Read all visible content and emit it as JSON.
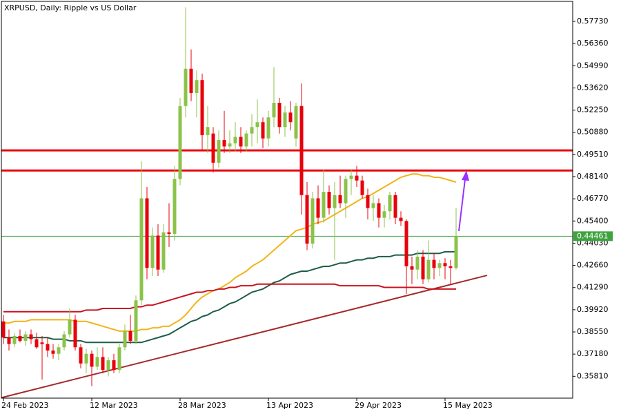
{
  "chart_data": {
    "type": "candlestick",
    "title": "XRPUSD, Daily:  Ripple vs US Dollar",
    "categories": [
      "24 Feb 2023",
      null,
      null,
      null,
      null,
      null,
      null,
      null,
      null,
      null,
      null,
      null,
      null,
      null,
      null,
      null,
      "12 Mar 2023",
      null,
      null,
      null,
      null,
      null,
      null,
      null,
      null,
      null,
      null,
      null,
      null,
      null,
      null,
      null,
      "28 Mar 2023",
      null,
      null,
      null,
      null,
      null,
      null,
      null,
      null,
      null,
      null,
      null,
      null,
      null,
      null,
      null,
      "13 Apr 2023",
      null,
      null,
      null,
      null,
      null,
      null,
      null,
      null,
      null,
      null,
      null,
      null,
      null,
      null,
      null,
      "29 Apr 2023",
      null,
      null,
      null,
      null,
      null,
      null,
      null,
      null,
      null,
      null,
      null,
      null,
      null,
      null,
      null,
      "15 May 2023",
      null,
      null
    ],
    "open": [
      0.392,
      0.382,
      0.378,
      0.383,
      0.38,
      0.384,
      0.381,
      0.379,
      0.378,
      0.374,
      0.372,
      0.376,
      0.384,
      0.393,
      0.376,
      0.366,
      0.372,
      0.364,
      0.37,
      0.362,
      0.368,
      0.362,
      0.376,
      0.386,
      0.38,
      0.405,
      0.468,
      0.425,
      0.445,
      0.424,
      0.447,
      0.446,
      0.48,
      0.525,
      0.548,
      0.533,
      0.541,
      0.507,
      0.508,
      0.49,
      0.504,
      0.5,
      0.502,
      0.506,
      0.5,
      0.508,
      0.512,
      0.515,
      0.505,
      0.518,
      0.527,
      0.512,
      0.521,
      0.505,
      0.525,
      0.47,
      0.44,
      0.468,
      0.456,
      0.472,
      0.462,
      0.47,
      0.465,
      0.48,
      0.482,
      0.479,
      0.47,
      0.462,
      0.465,
      0.456,
      0.46,
      0.47,
      0.456,
      0.454,
      0.426,
      0.424,
      0.432,
      0.418,
      0.43,
      0.425,
      0.428,
      0.426,
      0.425
    ],
    "high": [
      0.396,
      0.387,
      0.385,
      0.387,
      0.386,
      0.387,
      0.385,
      0.383,
      0.382,
      0.378,
      0.378,
      0.386,
      0.4,
      0.396,
      0.378,
      0.375,
      0.374,
      0.376,
      0.376,
      0.37,
      0.372,
      0.378,
      0.39,
      0.396,
      0.408,
      0.491,
      0.475,
      0.45,
      0.452,
      0.452,
      0.465,
      0.488,
      0.53,
      0.586,
      0.56,
      0.547,
      0.545,
      0.525,
      0.512,
      0.51,
      0.522,
      0.51,
      0.515,
      0.512,
      0.51,
      0.52,
      0.529,
      0.518,
      0.522,
      0.549,
      0.53,
      0.525,
      0.528,
      0.527,
      0.539,
      0.478,
      0.472,
      0.476,
      0.486,
      0.476,
      0.478,
      0.482,
      0.482,
      0.486,
      0.488,
      0.482,
      0.474,
      0.47,
      0.468,
      0.464,
      0.472,
      0.472,
      0.46,
      0.455,
      0.432,
      0.436,
      0.436,
      0.442,
      0.434,
      0.43,
      0.431,
      0.43,
      0.462
    ],
    "low": [
      0.378,
      0.374,
      0.376,
      0.379,
      0.377,
      0.378,
      0.375,
      0.356,
      0.37,
      0.369,
      0.368,
      0.374,
      0.382,
      0.374,
      0.363,
      0.36,
      0.352,
      0.362,
      0.36,
      0.358,
      0.36,
      0.36,
      0.374,
      0.378,
      0.378,
      0.402,
      0.418,
      0.42,
      0.42,
      0.422,
      0.438,
      0.442,
      0.476,
      0.518,
      0.528,
      0.518,
      0.498,
      0.496,
      0.484,
      0.487,
      0.496,
      0.496,
      0.497,
      0.496,
      0.497,
      0.5,
      0.502,
      0.499,
      0.5,
      0.512,
      0.508,
      0.506,
      0.51,
      0.5,
      0.458,
      0.436,
      0.437,
      0.452,
      0.453,
      0.458,
      0.43,
      0.462,
      0.456,
      0.47,
      0.475,
      0.468,
      0.455,
      0.454,
      0.45,
      0.45,
      0.455,
      0.452,
      0.451,
      0.409,
      0.415,
      0.418,
      0.415,
      0.416,
      0.418,
      0.42,
      0.418,
      0.415,
      0.424
    ],
    "close": [
      0.382,
      0.378,
      0.383,
      0.38,
      0.384,
      0.381,
      0.376,
      0.378,
      0.374,
      0.372,
      0.376,
      0.384,
      0.393,
      0.376,
      0.366,
      0.372,
      0.364,
      0.37,
      0.362,
      0.368,
      0.362,
      0.376,
      0.386,
      0.38,
      0.405,
      0.468,
      0.425,
      0.445,
      0.424,
      0.447,
      0.446,
      0.48,
      0.525,
      0.548,
      0.533,
      0.541,
      0.507,
      0.512,
      0.49,
      0.504,
      0.5,
      0.502,
      0.506,
      0.5,
      0.508,
      0.512,
      0.515,
      0.505,
      0.518,
      0.527,
      0.512,
      0.521,
      0.515,
      0.525,
      0.47,
      0.44,
      0.468,
      0.456,
      0.472,
      0.462,
      0.47,
      0.465,
      0.48,
      0.482,
      0.479,
      0.47,
      0.462,
      0.465,
      0.456,
      0.46,
      0.47,
      0.456,
      0.454,
      0.426,
      0.424,
      0.432,
      0.418,
      0.43,
      0.425,
      0.428,
      0.426,
      0.425,
      0.4446
    ],
    "up_color": "#8bc34a",
    "down_color": "#e8000b",
    "lines": [
      {
        "color": "#f2b417",
        "values": [
          0.391,
          0.391,
          0.392,
          0.392,
          0.392,
          0.393,
          0.393,
          0.393,
          0.393,
          0.393,
          0.393,
          0.393,
          0.393,
          0.392,
          0.392,
          0.392,
          0.391,
          0.39,
          0.389,
          0.388,
          0.387,
          0.386,
          0.386,
          0.386,
          0.386,
          0.387,
          0.387,
          0.388,
          0.388,
          0.389,
          0.389,
          0.391,
          0.393,
          0.396,
          0.4,
          0.404,
          0.407,
          0.409,
          0.411,
          0.412,
          0.414,
          0.416,
          0.419,
          0.421,
          0.423,
          0.426,
          0.428,
          0.43,
          0.433,
          0.436,
          0.439,
          0.442,
          0.445,
          0.448,
          0.449,
          0.45,
          0.452,
          0.453,
          0.454,
          0.456,
          0.458,
          0.46,
          0.462,
          0.464,
          0.466,
          0.468,
          0.469,
          0.471,
          0.473,
          0.475,
          0.477,
          0.479,
          0.481,
          0.482,
          0.483,
          0.483,
          0.482,
          0.482,
          0.481,
          0.481,
          0.48,
          0.479,
          0.478
        ]
      },
      {
        "color": "#1e5c46",
        "values": [
          0.382,
          0.382,
          0.382,
          0.382,
          0.382,
          0.382,
          0.382,
          0.382,
          0.382,
          0.381,
          0.381,
          0.381,
          0.38,
          0.38,
          0.38,
          0.379,
          0.379,
          0.379,
          0.379,
          0.379,
          0.379,
          0.379,
          0.379,
          0.379,
          0.379,
          0.379,
          0.38,
          0.381,
          0.382,
          0.383,
          0.384,
          0.386,
          0.388,
          0.39,
          0.392,
          0.393,
          0.395,
          0.396,
          0.398,
          0.399,
          0.401,
          0.403,
          0.404,
          0.406,
          0.408,
          0.41,
          0.411,
          0.412,
          0.414,
          0.416,
          0.417,
          0.419,
          0.421,
          0.422,
          0.423,
          0.423,
          0.424,
          0.425,
          0.426,
          0.426,
          0.427,
          0.428,
          0.428,
          0.429,
          0.43,
          0.43,
          0.431,
          0.431,
          0.432,
          0.432,
          0.432,
          0.433,
          0.433,
          0.433,
          0.433,
          0.434,
          0.434,
          0.434,
          0.434,
          0.434,
          0.435,
          0.435,
          0.435
        ]
      },
      {
        "color": "#c8141e",
        "values": [
          0.398,
          0.398,
          0.398,
          0.398,
          0.398,
          0.398,
          0.398,
          0.398,
          0.398,
          0.398,
          0.398,
          0.398,
          0.398,
          0.398,
          0.398,
          0.399,
          0.399,
          0.399,
          0.4,
          0.4,
          0.4,
          0.4,
          0.4,
          0.4,
          0.401,
          0.401,
          0.402,
          0.402,
          0.403,
          0.404,
          0.405,
          0.406,
          0.407,
          0.408,
          0.409,
          0.41,
          0.41,
          0.411,
          0.411,
          0.412,
          0.412,
          0.413,
          0.413,
          0.414,
          0.414,
          0.414,
          0.415,
          0.415,
          0.415,
          0.415,
          0.415,
          0.415,
          0.415,
          0.415,
          0.415,
          0.415,
          0.415,
          0.415,
          0.415,
          0.415,
          0.415,
          0.414,
          0.414,
          0.414,
          0.414,
          0.414,
          0.414,
          0.414,
          0.414,
          0.413,
          0.413,
          0.413,
          0.413,
          0.413,
          0.413,
          0.413,
          0.413,
          0.412,
          0.412,
          0.412,
          0.412,
          0.412,
          0.412
        ]
      }
    ],
    "levels": [
      0.4976,
      0.4852
    ],
    "level_color": "#e8000b",
    "trendline": {
      "color": "#a52a2a",
      "values": [
        0.3452,
        0.4156
      ]
    },
    "current_price": 0.44461,
    "current_price_color": "#3fa33f",
    "ylim": [
      0.3446,
      0.5905
    ],
    "yticks": [
      {
        "value": 0.5773,
        "label": "0.57730"
      },
      {
        "value": 0.5636,
        "label": "0.56360"
      },
      {
        "value": 0.5499,
        "label": "0.54990"
      },
      {
        "value": 0.5362,
        "label": "0.53620"
      },
      {
        "value": 0.5225,
        "label": "0.52250"
      },
      {
        "value": 0.5088,
        "label": "0.50880"
      },
      {
        "value": 0.4951,
        "label": "0.49510"
      },
      {
        "value": 0.4814,
        "label": "0.48140"
      },
      {
        "value": 0.4677,
        "label": "0.46770"
      },
      {
        "value": 0.454,
        "label": "0.45400"
      },
      {
        "value": 0.4403,
        "label": "0.44030"
      },
      {
        "value": 0.4266,
        "label": "0.42660"
      },
      {
        "value": 0.4129,
        "label": "0.41290"
      },
      {
        "value": 0.3992,
        "label": "0.39920"
      },
      {
        "value": 0.3855,
        "label": "0.38550"
      },
      {
        "value": 0.3718,
        "label": "0.37180"
      },
      {
        "value": 0.3581,
        "label": "0.35810"
      }
    ]
  }
}
